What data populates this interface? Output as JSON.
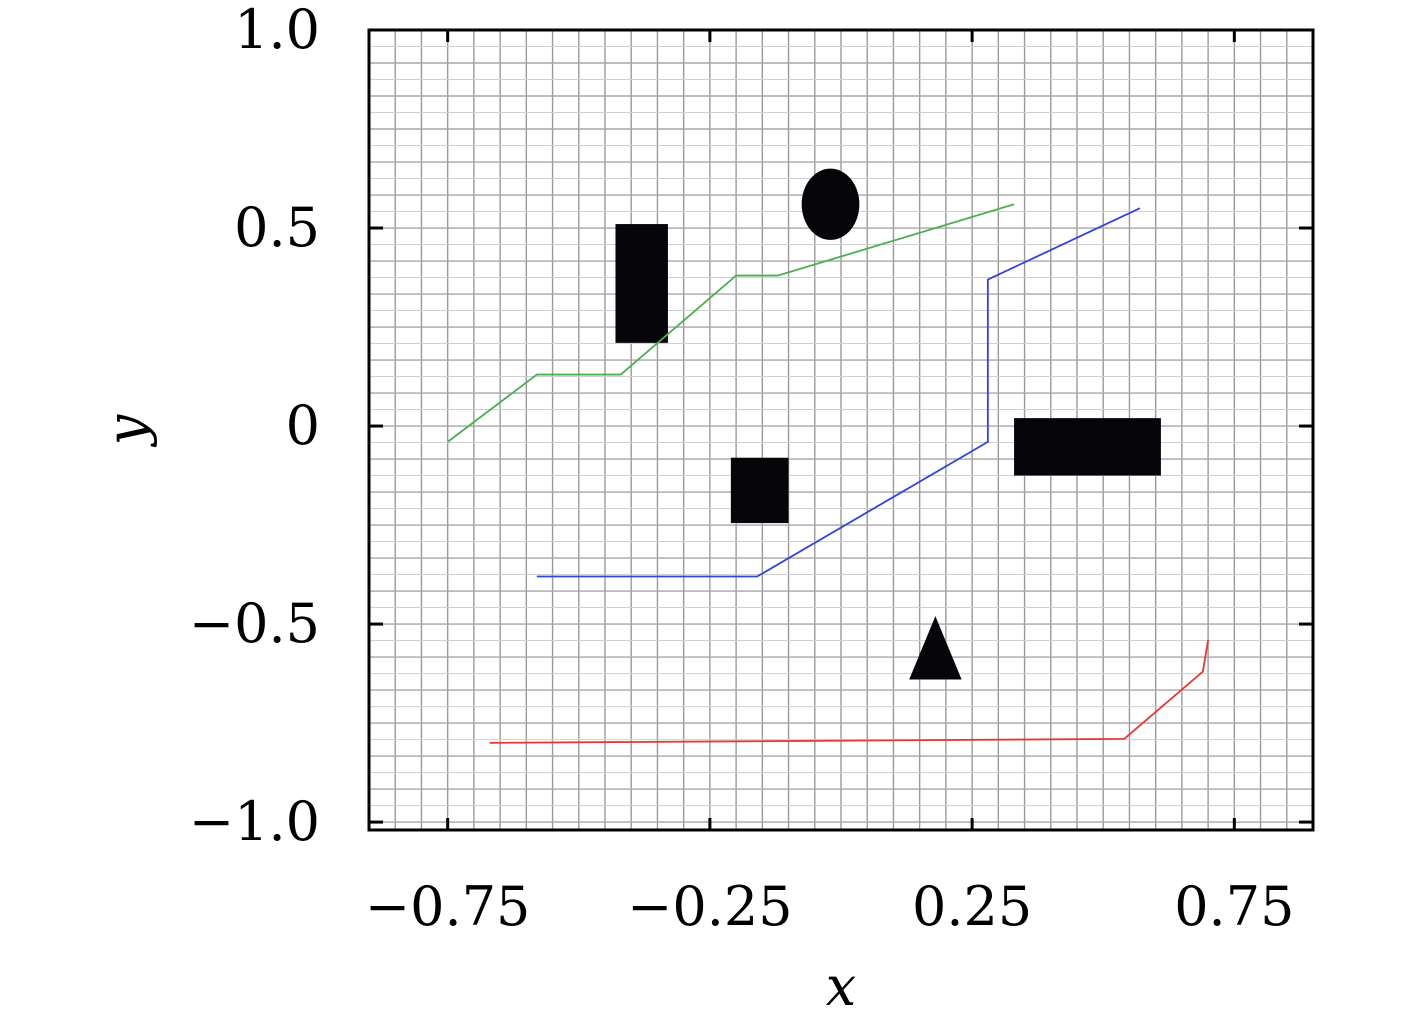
{
  "chart_data": {
    "type": "line",
    "title": "",
    "xlabel": "x",
    "ylabel": "y",
    "xlim": [
      -0.9,
      0.9
    ],
    "ylim": [
      -1.02,
      1.0
    ],
    "x_ticks": [
      -0.75,
      -0.25,
      0.25,
      0.75
    ],
    "x_tick_labels": [
      "−0.75",
      "−0.25",
      "0.25",
      "0.75"
    ],
    "y_ticks": [
      1.0,
      0.5,
      0,
      -0.5,
      -1.0
    ],
    "y_tick_labels": [
      "1.0",
      "0.5",
      "0",
      "−0.5",
      "−1.0"
    ],
    "grid": true,
    "legend": "none",
    "series": [
      {
        "color": "#4caf50",
        "x": [
          -0.75,
          -0.58,
          -0.42,
          -0.2,
          -0.12,
          0.33
        ],
        "y": [
          -0.04,
          0.13,
          0.13,
          0.38,
          0.38,
          0.56
        ]
      },
      {
        "color": "#3344dd",
        "x": [
          -0.58,
          -0.16,
          0.28,
          0.28,
          0.57
        ],
        "y": [
          -0.38,
          -0.38,
          -0.04,
          0.37,
          0.55
        ]
      },
      {
        "color": "#e53935",
        "x": [
          -0.67,
          0.54,
          0.69,
          0.7
        ],
        "y": [
          -0.8,
          -0.79,
          -0.62,
          -0.54
        ]
      }
    ],
    "obstacles": [
      {
        "shape": "rectangle",
        "x": [
          -0.43,
          -0.33
        ],
        "y": [
          0.21,
          0.51
        ]
      },
      {
        "shape": "ellipse",
        "cx": -0.02,
        "cy": 0.56,
        "rx": 0.055,
        "ry": 0.09
      },
      {
        "shape": "rectangle",
        "x": [
          -0.21,
          -0.1
        ],
        "y": [
          -0.245,
          -0.08
        ]
      },
      {
        "shape": "rectangle",
        "x": [
          0.33,
          0.61
        ],
        "y": [
          -0.125,
          0.02
        ]
      },
      {
        "shape": "triangle",
        "points": [
          [
            0.18,
            -0.48
          ],
          [
            0.13,
            -0.64
          ],
          [
            0.23,
            -0.64
          ]
        ]
      }
    ]
  }
}
